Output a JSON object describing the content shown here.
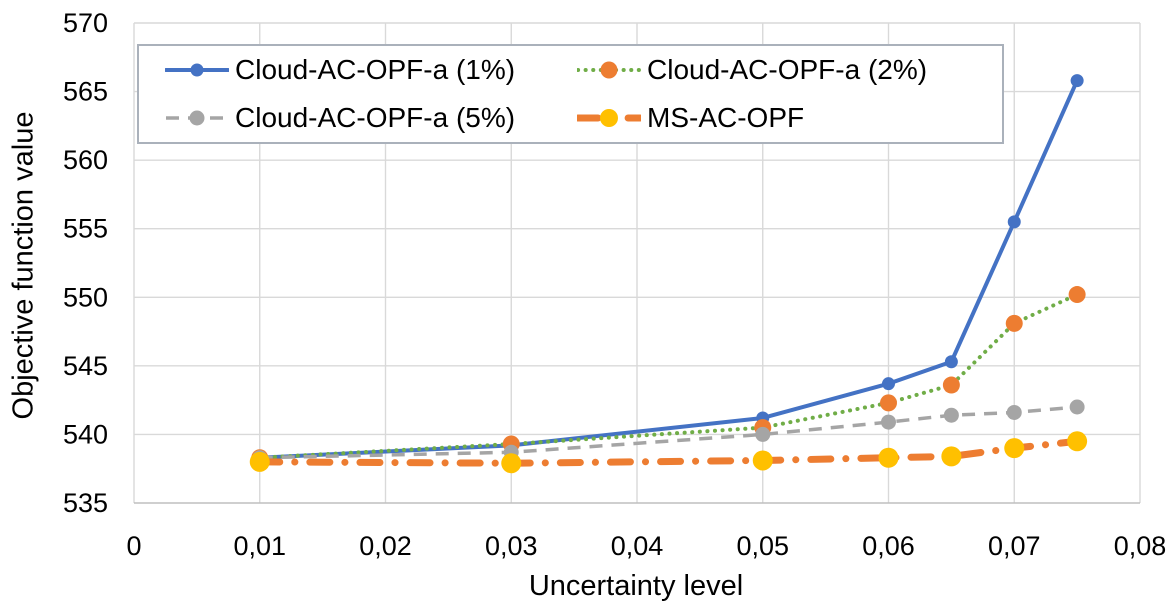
{
  "chart_data": {
    "type": "line",
    "title": "",
    "xlabel": "Uncertainty level",
    "ylabel": "Objective function value",
    "xlim": [
      0,
      0.08
    ],
    "ylim": [
      535,
      570
    ],
    "grid": true,
    "legend_position": "top-left inside plot, 2 columns",
    "x_ticks": [
      0,
      0.01,
      0.02,
      0.03,
      0.04,
      0.05,
      0.06,
      0.07,
      0.08
    ],
    "x_tick_labels": [
      "0",
      "0,01",
      "0,02",
      "0,03",
      "0,04",
      "0,05",
      "0,06",
      "0,07",
      "0,08"
    ],
    "y_ticks": [
      535,
      540,
      545,
      550,
      555,
      560,
      565,
      570
    ],
    "y_tick_labels": [
      "535",
      "540",
      "545",
      "550",
      "555",
      "560",
      "565",
      "570"
    ],
    "x": [
      0.01,
      0.03,
      0.05,
      0.06,
      0.065,
      0.07,
      0.075
    ],
    "series": [
      {
        "name": "Cloud-AC-OPF-a (1%)",
        "line_color": "#4472C4",
        "marker_color": "#4472C4",
        "line_style": "solid",
        "line_width": 4,
        "marker_radius": 6.5,
        "values": [
          538.3,
          539.2,
          541.2,
          543.7,
          545.3,
          555.5,
          565.8
        ]
      },
      {
        "name": "Cloud-AC-OPF-a (2%)",
        "line_color": "#70AD47",
        "marker_color": "#ED7D31",
        "line_style": "dotted",
        "line_width": 4,
        "marker_radius": 8.5,
        "values": [
          538.3,
          539.3,
          540.5,
          542.3,
          543.6,
          548.1,
          550.2
        ]
      },
      {
        "name": "Cloud-AC-OPF-a (5%)",
        "line_color": "#A5A5A5",
        "marker_color": "#A5A5A5",
        "line_style": "dashed",
        "line_width": 3.5,
        "marker_radius": 7.5,
        "values": [
          538.3,
          538.7,
          540.0,
          540.9,
          541.4,
          541.6,
          542.0
        ]
      },
      {
        "name": "MS-AC-OPF",
        "line_color": "#ED7D31",
        "marker_color": "#FFC000",
        "line_style": "dash-dot",
        "line_width": 7,
        "marker_radius": 10,
        "values": [
          538.0,
          537.9,
          538.1,
          538.3,
          538.4,
          539.0,
          539.5
        ]
      }
    ],
    "colors": {
      "gridline": "#D9D9D9",
      "axis_line": "#BFBFBF",
      "text": "#000000",
      "legend_border": "#AAB1BB",
      "background": "#FFFFFF"
    }
  }
}
